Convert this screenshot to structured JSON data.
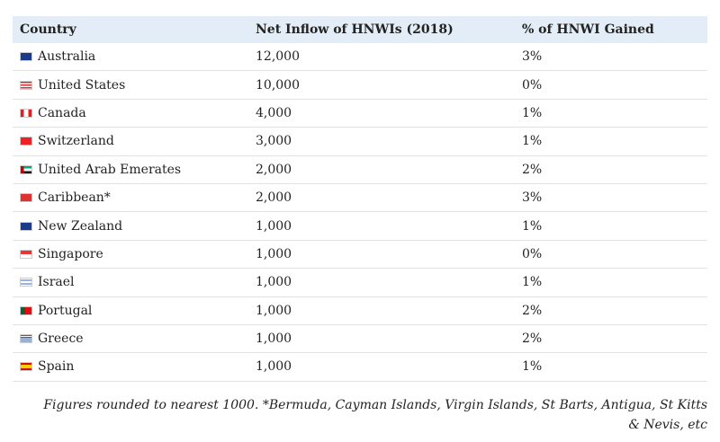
{
  "table": {
    "headers": [
      "Country",
      "Net Inflow of HNWIs (2018)",
      "% of HNWI Gained"
    ],
    "rows": [
      [
        "Australia",
        "12,000",
        "3%"
      ],
      [
        "United States",
        "10,000",
        "0%"
      ],
      [
        "Canada",
        "4,000",
        "1%"
      ],
      [
        "Switzerland",
        "3,000",
        "1%"
      ],
      [
        "United Arab Emerates",
        "2,000",
        "2%"
      ],
      [
        "Caribbean*",
        "2,000",
        "3%"
      ],
      [
        "New Zealand",
        "1,000",
        "1%"
      ],
      [
        "Singapore",
        "1,000",
        "0%"
      ],
      [
        "Israel",
        "1,000",
        "1%"
      ],
      [
        "Portugal",
        "1,000",
        "2%"
      ],
      [
        "Greece",
        "1,000",
        "2%"
      ],
      [
        "Spain",
        "1,000",
        "1%"
      ]
    ]
  },
  "footnote": "Figures rounded to nearest 1000. *Bermuda, Cayman Islands, Virgin Islands, St Barts, Antigua, St Kitts & Nevis, etc"
}
